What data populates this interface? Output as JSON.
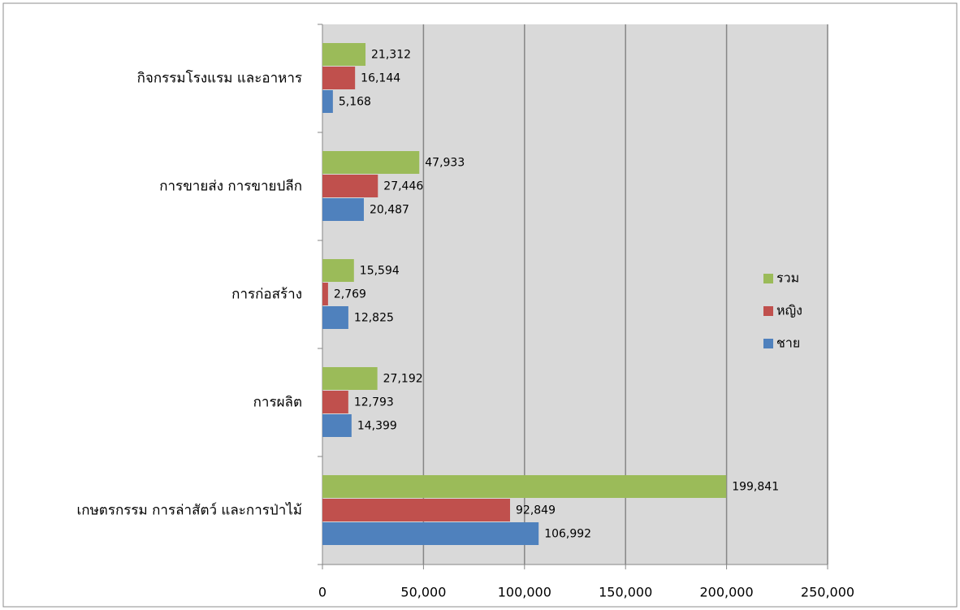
{
  "chart_data": {
    "type": "bar",
    "orientation": "horizontal",
    "categories": [
      "เกษตรกรรม การล่าสัตว์ และการป่าไม้",
      "การผลิต",
      "การก่อสร้าง",
      "การขายส่ง การขายปลีก",
      "กิจกรรมโรงแรม และอาหาร"
    ],
    "series": [
      {
        "name": "ชาย",
        "color": "#4f81bd",
        "values": [
          106992,
          14399,
          12825,
          20487,
          5168
        ],
        "value_labels": [
          "106,992",
          "14,399",
          "12,825",
          "20,487",
          "5,168"
        ]
      },
      {
        "name": "หญิง",
        "color": "#c0504d",
        "values": [
          92849,
          12793,
          2769,
          27446,
          16144
        ],
        "value_labels": [
          "92,849",
          "12,793",
          "2,769",
          "27,446",
          "16,144"
        ]
      },
      {
        "name": "รวม",
        "color": "#9bbb59",
        "values": [
          199841,
          27192,
          15594,
          47933,
          21312
        ],
        "value_labels": [
          "199,841",
          "27,192",
          "15,594",
          "47,933",
          "21,312"
        ]
      }
    ],
    "xlim": [
      0,
      250000
    ],
    "xticks": [
      0,
      {
        "value": 50000,
        "label": "50,000"
      },
      {
        "value": 100000,
        "label": "100,000"
      },
      {
        "value": 150000,
        "label": "150,000"
      },
      {
        "value": 200000,
        "label": "200,000"
      },
      {
        "value": 250000,
        "label": "250,000"
      }
    ],
    "grid": true,
    "legend": "right"
  }
}
